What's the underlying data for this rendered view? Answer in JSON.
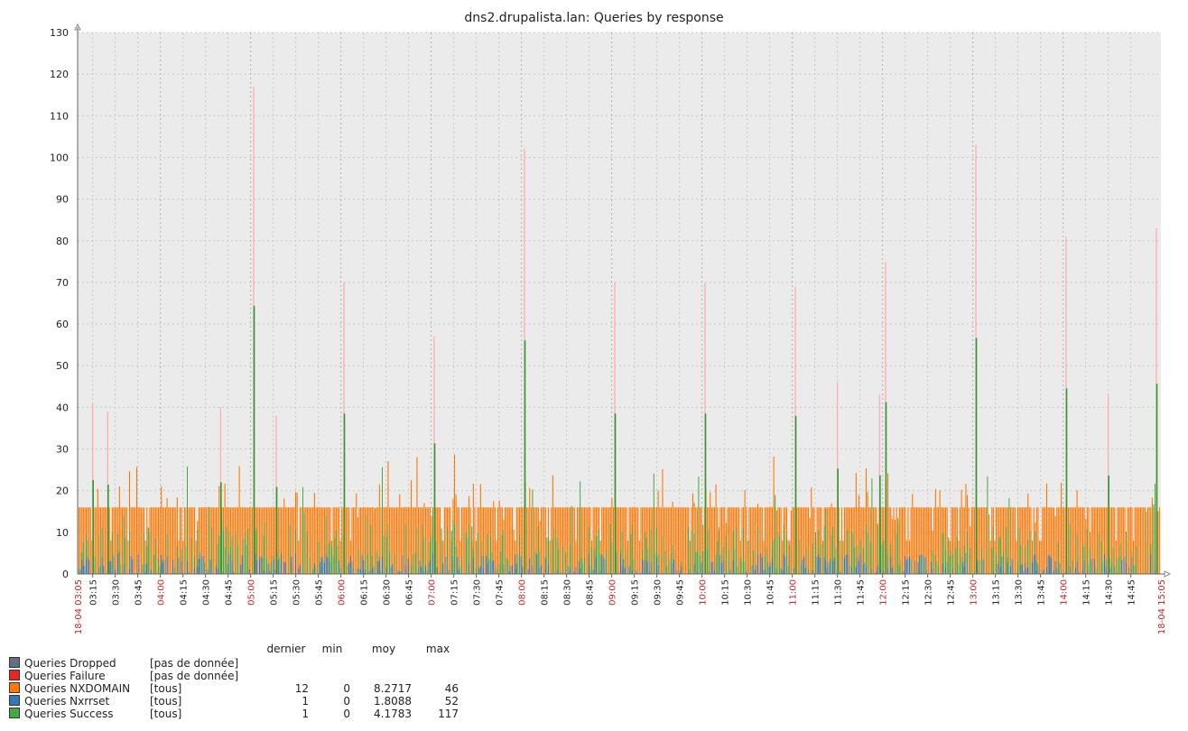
{
  "chart_data": {
    "type": "bar",
    "title": "dns2.drupalista.lan: Queries by response",
    "ylim": [
      0,
      130
    ],
    "yticks": [
      0,
      10,
      20,
      30,
      40,
      50,
      60,
      70,
      80,
      90,
      100,
      110,
      120,
      130
    ],
    "x_start_label": "18-04 03:05",
    "x_end_label": "18-04 15:05",
    "x_tick_labels": [
      "03:15",
      "03:30",
      "03:45",
      "04:00",
      "04:15",
      "04:30",
      "04:45",
      "05:00",
      "05:15",
      "05:30",
      "05:45",
      "06:00",
      "06:15",
      "06:30",
      "06:45",
      "07:00",
      "07:15",
      "07:30",
      "07:45",
      "08:00",
      "08:15",
      "08:30",
      "08:45",
      "09:00",
      "09:15",
      "09:30",
      "09:45",
      "10:00",
      "10:15",
      "10:30",
      "10:45",
      "11:00",
      "11:15",
      "11:30",
      "11:45",
      "12:00",
      "12:15",
      "12:30",
      "12:45",
      "13:00",
      "13:15",
      "13:30",
      "13:45",
      "14:00",
      "14:15",
      "14:30",
      "14:45"
    ],
    "major_tick_labels": [
      "04:00",
      "05:00",
      "06:00",
      "07:00",
      "08:00",
      "09:00",
      "10:00",
      "11:00",
      "12:00",
      "13:00",
      "14:00"
    ],
    "grid": true,
    "series": [
      {
        "name": "Queries Dropped",
        "scope": "[pas de donnée]",
        "color": "#607080",
        "last": "",
        "min": "",
        "avg": "",
        "max": ""
      },
      {
        "name": "Queries Failure",
        "scope": "[pas de donnée]",
        "color": "#ee2222",
        "last": "",
        "min": "",
        "avg": "",
        "max": ""
      },
      {
        "name": "Queries NXDOMAIN",
        "scope": "[tous]",
        "color": "#ff7700",
        "last": "12",
        "min": "0",
        "avg": "8.2717",
        "max": "46"
      },
      {
        "name": "Queries Nxrrset",
        "scope": "[tous]",
        "color": "#3377bb",
        "last": "1",
        "min": "0",
        "avg": "1.8088",
        "max": "52"
      },
      {
        "name": "Queries Success",
        "scope": "[tous]",
        "color": "#44aa44",
        "last": "1",
        "min": "0",
        "avg": "4.1783",
        "max": "117"
      }
    ],
    "peaks": [
      {
        "time": "03:15",
        "value": 41
      },
      {
        "time": "03:25",
        "value": 39
      },
      {
        "time": "04:40",
        "value": 40
      },
      {
        "time": "05:02",
        "value": 117
      },
      {
        "time": "05:17",
        "value": 38
      },
      {
        "time": "06:02",
        "value": 70
      },
      {
        "time": "07:02",
        "value": 57
      },
      {
        "time": "08:02",
        "value": 102
      },
      {
        "time": "09:02",
        "value": 70
      },
      {
        "time": "10:02",
        "value": 70
      },
      {
        "time": "11:02",
        "value": 69
      },
      {
        "time": "11:30",
        "value": 46
      },
      {
        "time": "11:58",
        "value": 43
      },
      {
        "time": "12:02",
        "value": 75
      },
      {
        "time": "13:02",
        "value": 103
      },
      {
        "time": "14:02",
        "value": 81
      },
      {
        "time": "14:30",
        "value": 43
      },
      {
        "time": "15:02",
        "value": 83
      }
    ]
  },
  "legend": {
    "col_last": "dernier",
    "col_min": "min",
    "col_avg": "moy",
    "col_max": "max"
  }
}
